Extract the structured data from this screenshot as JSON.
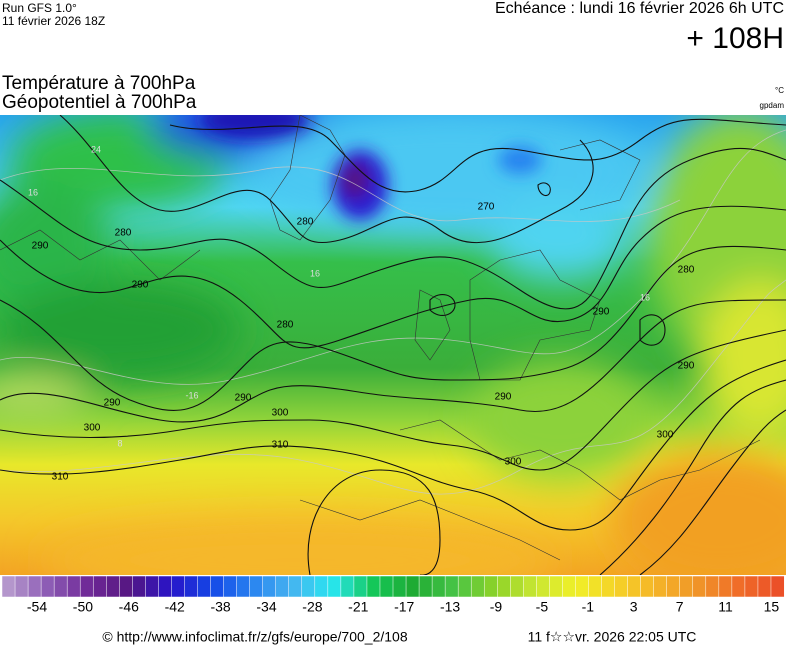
{
  "header": {
    "run": "Run GFS 1.0°",
    "run_date": "11 février 2026 18Z",
    "valid": "Echéance : lundi 16 février 2026 6h UTC",
    "lead": "+ 108H",
    "title_1": "Température à 700hPa",
    "title_2": "Géopotentiel à 700hPa",
    "unit_temp": "°C",
    "unit_geo": "gpdam"
  },
  "map": {
    "contour_labels": [
      "290",
      "280",
      "270",
      "280",
      "290",
      "280",
      "290",
      "290",
      "300",
      "310",
      "310",
      "290",
      "300",
      "300",
      "290",
      "280",
      "290",
      "300"
    ],
    "temp_labels": [
      "24",
      "16",
      "16",
      "-16",
      "16",
      "8"
    ]
  },
  "legend": {
    "ticks": [
      -54,
      -50,
      -46,
      -42,
      -38,
      -34,
      -28,
      -21,
      -17,
      -13,
      -9,
      -5,
      -1,
      3,
      7,
      11,
      15
    ],
    "colors": [
      "#b496cc",
      "#8c5ab4",
      "#6e2896",
      "#551682",
      "#2814c8",
      "#1446e6",
      "#2882f0",
      "#46b4f0",
      "#28e6f0",
      "#14c85a",
      "#1eaa32",
      "#46c346",
      "#8cd228",
      "#c8e632",
      "#f0f028",
      "#f5d228",
      "#f5b428",
      "#f09628",
      "#f06e28",
      "#eb5028"
    ]
  },
  "footer": {
    "url": "© http://www.infoclimat.fr/z/gfs/europe/700_2/108",
    "stamp": "11 f☆☆vr. 2026 22:05 UTC"
  }
}
